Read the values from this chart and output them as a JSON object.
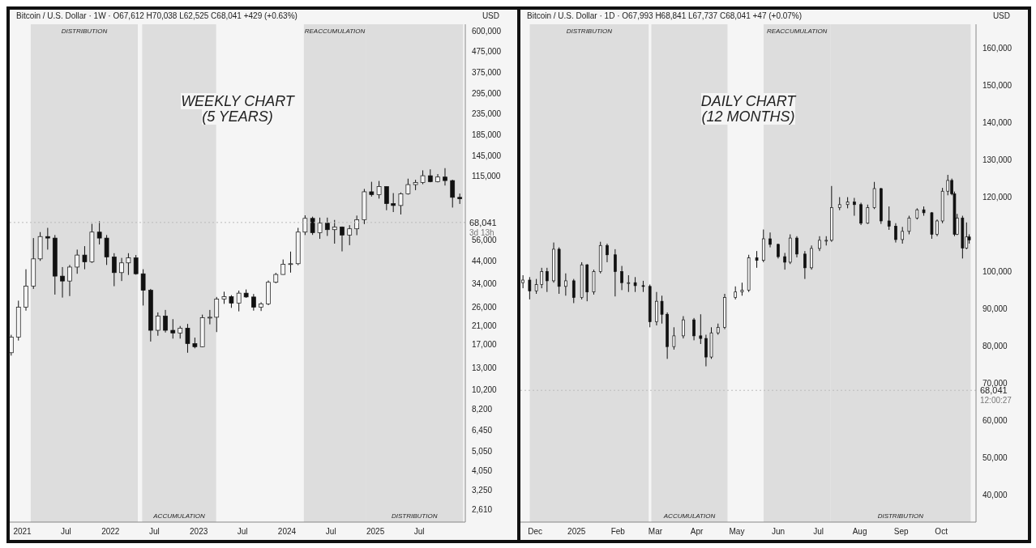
{
  "chart_data": [
    {
      "type": "candlestick",
      "title": "Bitcoin / U.S. Dollar · 1W · O67,612  H70,038  L62,525  C68,041  +429 (+0.63%)",
      "subtitle": "WEEKLY CHART\n(5 YEARS)",
      "ylabel": "USD",
      "log": true,
      "color": "#111111",
      "x": [
        "2020-11-15",
        "2020-12-15",
        "2021-01-15",
        "2021-02-15",
        "2021-03-15",
        "2021-04-15",
        "2021-05-15",
        "2021-06-15",
        "2021-07-15",
        "2021-08-15",
        "2021-09-15",
        "2021-10-15",
        "2021-11-15",
        "2021-12-15",
        "2022-01-15",
        "2022-02-15",
        "2022-03-15",
        "2022-04-15",
        "2022-05-15",
        "2022-06-15",
        "2022-07-15",
        "2022-08-15",
        "2022-09-15",
        "2022-10-15",
        "2022-11-15",
        "2022-12-15",
        "2023-01-15",
        "2023-02-15",
        "2023-03-15",
        "2023-04-15",
        "2023-05-15",
        "2023-06-15",
        "2023-07-15",
        "2023-08-15",
        "2023-09-15",
        "2023-10-15",
        "2023-11-15",
        "2023-12-15",
        "2024-01-15",
        "2024-02-15",
        "2024-03-15",
        "2024-04-15",
        "2024-05-15",
        "2024-06-15",
        "2024-07-15",
        "2024-08-15",
        "2024-09-15",
        "2024-10-15",
        "2024-11-15",
        "2024-12-15",
        "2025-01-15",
        "2025-02-15",
        "2025-03-15",
        "2025-04-15",
        "2025-05-15",
        "2025-06-15",
        "2025-07-15",
        "2025-08-15",
        "2025-09-15",
        "2025-10-15",
        "2025-11-15",
        "2025-12-15"
      ],
      "ohlc": [
        [
          15500,
          19000,
          15000,
          18500
        ],
        [
          18500,
          28000,
          17800,
          26000
        ],
        [
          26000,
          40000,
          25000,
          33000
        ],
        [
          33000,
          57000,
          32000,
          45000
        ],
        [
          45000,
          61000,
          44000,
          58000
        ],
        [
          58000,
          64000,
          50000,
          57000
        ],
        [
          57000,
          59000,
          30000,
          37000
        ],
        [
          37000,
          41000,
          29000,
          35000
        ],
        [
          35000,
          42000,
          29500,
          41000
        ],
        [
          41000,
          50000,
          38000,
          47000
        ],
        [
          47000,
          52000,
          40000,
          43500
        ],
        [
          43500,
          67000,
          43000,
          61000
        ],
        [
          61000,
          69000,
          53000,
          57000
        ],
        [
          57000,
          59000,
          42000,
          46000
        ],
        [
          46000,
          48000,
          33000,
          38500
        ],
        [
          38500,
          45500,
          35000,
          43000
        ],
        [
          43000,
          48000,
          37500,
          45500
        ],
        [
          45500,
          47000,
          37600,
          38000
        ],
        [
          38000,
          40000,
          26500,
          31500
        ],
        [
          31500,
          32000,
          17600,
          20000
        ],
        [
          20000,
          24500,
          18800,
          23500
        ],
        [
          23500,
          25200,
          19500,
          20000
        ],
        [
          20000,
          22700,
          18200,
          19400
        ],
        [
          19400,
          21000,
          18200,
          20500
        ],
        [
          20500,
          21500,
          15500,
          17200
        ],
        [
          17200,
          18400,
          16300,
          16600
        ],
        [
          16600,
          23900,
          16500,
          23100
        ],
        [
          23100,
          25200,
          21400,
          23200
        ],
        [
          23200,
          29200,
          19600,
          28500
        ],
        [
          28500,
          31000,
          27000,
          29300
        ],
        [
          29300,
          29800,
          25800,
          27200
        ],
        [
          27200,
          31400,
          24800,
          30500
        ],
        [
          30500,
          31800,
          28900,
          29200
        ],
        [
          29200,
          30200,
          25000,
          26000
        ],
        [
          26000,
          27500,
          24900,
          27000
        ],
        [
          27000,
          35200,
          26600,
          34500
        ],
        [
          34500,
          38400,
          34100,
          37700
        ],
        [
          37700,
          44700,
          37600,
          42300
        ],
        [
          42300,
          48900,
          38500,
          42600
        ],
        [
          42600,
          64000,
          41900,
          61000
        ],
        [
          61000,
          73800,
          59000,
          71300
        ],
        [
          71300,
          72700,
          59100,
          60600
        ],
        [
          60600,
          71900,
          56500,
          67500
        ],
        [
          67500,
          71900,
          58400,
          62700
        ],
        [
          62700,
          70000,
          53500,
          64600
        ],
        [
          64600,
          65000,
          49000,
          59000
        ],
        [
          59000,
          66000,
          52600,
          63300
        ],
        [
          63300,
          73600,
          58900,
          70200
        ],
        [
          70200,
          99600,
          66800,
          96400
        ],
        [
          96400,
          108000,
          91300,
          93400
        ],
        [
          93400,
          109000,
          89200,
          102400
        ],
        [
          102400,
          102500,
          78200,
          84300
        ],
        [
          84300,
          95000,
          76600,
          82500
        ],
        [
          82500,
          95700,
          74500,
          94200
        ],
        [
          94200,
          111900,
          93400,
          104600
        ],
        [
          104600,
          110500,
          98200,
          107100
        ],
        [
          107100,
          123000,
          105100,
          115700
        ],
        [
          115700,
          124400,
          107400,
          108200
        ],
        [
          108200,
          117900,
          107300,
          114000
        ],
        [
          114000,
          126100,
          103500,
          109500
        ],
        [
          109500,
          110600,
          80600,
          90500
        ],
        [
          90500,
          94500,
          84000,
          89000
        ]
      ],
      "xlim": [
        "2020-11-10",
        "2026-01-08"
      ],
      "xticks": [
        {
          "value": "2021-01-01",
          "label": "2021"
        },
        {
          "value": "2021-07-01",
          "label": "Jul"
        },
        {
          "value": "2022-01-01",
          "label": "2022"
        },
        {
          "value": "2022-07-01",
          "label": "Jul"
        },
        {
          "value": "2023-01-01",
          "label": "2023"
        },
        {
          "value": "2023-07-01",
          "label": "Jul"
        },
        {
          "value": "2024-01-01",
          "label": "2024"
        },
        {
          "value": "2024-07-01",
          "label": "Jul"
        },
        {
          "value": "2025-01-01",
          "label": "2025"
        },
        {
          "value": "2025-07-01",
          "label": "Jul"
        }
      ],
      "ylim": [
        2265,
        646000
      ],
      "yticks": [
        {
          "value": 600000,
          "label": "600,000"
        },
        {
          "value": 475000,
          "label": "475,000"
        },
        {
          "value": 375000,
          "label": "375,000"
        },
        {
          "value": 295000,
          "label": "295,000"
        },
        {
          "value": 235000,
          "label": "235,000"
        },
        {
          "value": 185000,
          "label": "185,000"
        },
        {
          "value": 145000,
          "label": "145,000"
        },
        {
          "value": 115000,
          "label": "115,000"
        },
        {
          "value": 56000,
          "label": "56,000"
        },
        {
          "value": 44000,
          "label": "44,000"
        },
        {
          "value": 34000,
          "label": "34,000"
        },
        {
          "value": 26000,
          "label": "26,000"
        },
        {
          "value": 21000,
          "label": "21,000"
        },
        {
          "value": 17000,
          "label": "17,000"
        },
        {
          "value": 13000,
          "label": "13,000"
        },
        {
          "value": 10200,
          "label": "10,200"
        },
        {
          "value": 8200,
          "label": "8,200"
        },
        {
          "value": 6450,
          "label": "6,450"
        },
        {
          "value": 5050,
          "label": "5,050"
        },
        {
          "value": 4050,
          "label": "4,050"
        },
        {
          "value": 3250,
          "label": "3,250"
        },
        {
          "value": 2610,
          "label": "2,610"
        }
      ],
      "bands": [
        {
          "axis": "x",
          "from": "2021-02-05",
          "to": "2022-04-24",
          "label": "DISTRIBUTION",
          "color": "#dddddd"
        },
        {
          "axis": "x",
          "from": "2022-05-12",
          "to": "2023-03-14",
          "label": "ACCUMULATION",
          "color": "#dddddd"
        },
        {
          "axis": "x",
          "from": "2024-03-11",
          "to": "2024-11-22",
          "label": "REACCUMULATION",
          "color": "#dddddd"
        },
        {
          "axis": "x",
          "from": "2024-11-22",
          "to": "2025-12-30",
          "label": "DISTRIBUTION",
          "color": "#dddddd"
        }
      ],
      "ref_lines": [
        {
          "axis": "y",
          "value": 68041,
          "label": "68,041",
          "line_style": "dotted",
          "color": "#bbbbbb"
        }
      ],
      "annotations": [
        "3d 13h"
      ]
    },
    {
      "type": "candlestick",
      "title": "Bitcoin / U.S. Dollar · 1D · O67,993  H68,841  L67,737  C68,041  +47 (+0.07%)",
      "subtitle": "DAILY CHART\n(12 MONTHS)",
      "ylabel": "USD",
      "color": "#111111",
      "x": [
        "2024-11-22",
        "2024-11-27",
        "2024-12-02",
        "2024-12-06",
        "2024-12-10",
        "2024-12-15",
        "2024-12-19",
        "2024-12-24",
        "2024-12-30",
        "2025-01-05",
        "2025-01-09",
        "2025-01-14",
        "2025-01-19",
        "2025-01-24",
        "2025-01-30",
        "2025-02-04",
        "2025-02-09",
        "2025-02-14",
        "2025-02-20",
        "2025-02-25",
        "2025-03-02",
        "2025-03-06",
        "2025-03-10",
        "2025-03-15",
        "2025-03-22",
        "2025-03-30",
        "2025-04-04",
        "2025-04-08",
        "2025-04-12",
        "2025-04-17",
        "2025-04-22",
        "2025-04-30",
        "2025-05-05",
        "2025-05-10",
        "2025-05-16",
        "2025-05-21",
        "2025-05-26",
        "2025-06-01",
        "2025-06-06",
        "2025-06-10",
        "2025-06-15",
        "2025-06-21",
        "2025-06-26",
        "2025-07-02",
        "2025-07-07",
        "2025-07-11",
        "2025-07-17",
        "2025-07-23",
        "2025-07-28",
        "2025-08-02",
        "2025-08-07",
        "2025-08-12",
        "2025-08-17",
        "2025-08-23",
        "2025-08-28",
        "2025-09-02",
        "2025-09-07",
        "2025-09-13",
        "2025-09-18",
        "2025-09-24",
        "2025-09-28",
        "2025-10-02",
        "2025-10-06",
        "2025-10-09",
        "2025-10-11",
        "2025-10-13",
        "2025-10-17",
        "2025-10-20",
        "2025-10-22"
      ],
      "ohlc": [
        [
          97000,
          99000,
          95500,
          97700
        ],
        [
          97700,
          98500,
          92500,
          94800
        ],
        [
          94800,
          98000,
          94000,
          96500
        ],
        [
          96500,
          101000,
          95500,
          100000
        ],
        [
          100000,
          101000,
          94500,
          97500
        ],
        [
          97500,
          107800,
          97000,
          106000
        ],
        [
          106000,
          106500,
          94000,
          96000
        ],
        [
          96000,
          99500,
          93500,
          97500
        ],
        [
          97500,
          98000,
          91500,
          93000
        ],
        [
          93000,
          102500,
          92500,
          101800
        ],
        [
          101800,
          102000,
          92000,
          94500
        ],
        [
          94500,
          100500,
          93800,
          100000
        ],
        [
          100000,
          108000,
          99500,
          107000
        ],
        [
          107000,
          107500,
          102500,
          104500
        ],
        [
          104500,
          106000,
          93300,
          100000
        ],
        [
          100000,
          101500,
          95000,
          97000
        ],
        [
          97000,
          99000,
          94500,
          97000
        ],
        [
          97000,
          98500,
          94500,
          96200
        ],
        [
          96200,
          97500,
          94500,
          96000
        ],
        [
          96000,
          96500,
          85000,
          86500
        ],
        [
          86500,
          94500,
          85500,
          92000
        ],
        [
          92000,
          93500,
          86000,
          88500
        ],
        [
          88500,
          89000,
          76500,
          79800
        ],
        [
          79800,
          85000,
          79000,
          82700
        ],
        [
          82700,
          88000,
          82000,
          87000
        ],
        [
          87000,
          87500,
          81500,
          82700
        ],
        [
          82700,
          88500,
          80500,
          82000
        ],
        [
          82000,
          83000,
          74500,
          77000
        ],
        [
          77000,
          85000,
          76500,
          83500
        ],
        [
          83500,
          86000,
          83000,
          85000
        ],
        [
          85000,
          94000,
          84500,
          93000
        ],
        [
          93000,
          96000,
          92500,
          94500
        ],
        [
          94500,
          97000,
          93500,
          95000
        ],
        [
          95000,
          104500,
          94500,
          103700
        ],
        [
          103700,
          105500,
          101000,
          103000
        ],
        [
          103000,
          111300,
          102500,
          108800
        ],
        [
          108800,
          110500,
          106500,
          107300
        ],
        [
          107300,
          107500,
          103500,
          104000
        ],
        [
          104000,
          105000,
          100500,
          102500
        ],
        [
          102500,
          110000,
          102000,
          109000
        ],
        [
          109000,
          109500,
          103800,
          104700
        ],
        [
          104700,
          105500,
          98000,
          101000
        ],
        [
          101000,
          107000,
          100500,
          106200
        ],
        [
          106200,
          109500,
          105500,
          108400
        ],
        [
          108400,
          109500,
          107000,
          108400
        ],
        [
          108400,
          123000,
          108000,
          117200
        ],
        [
          117200,
          120000,
          116500,
          118000
        ],
        [
          118000,
          120000,
          117000,
          118700
        ],
        [
          118700,
          119800,
          115000,
          118000
        ],
        [
          118000,
          118500,
          112500,
          113000
        ],
        [
          113000,
          118000,
          112800,
          117200
        ],
        [
          117200,
          124100,
          116800,
          122300
        ],
        [
          122300,
          122500,
          112800,
          113600
        ],
        [
          113600,
          117500,
          111200,
          112200
        ],
        [
          112200,
          113000,
          107800,
          108600
        ],
        [
          108600,
          112000,
          107500,
          110800
        ],
        [
          110800,
          115000,
          110000,
          114400
        ],
        [
          114400,
          117000,
          114000,
          116600
        ],
        [
          116600,
          117500,
          115000,
          115800
        ],
        [
          115800,
          116000,
          108800,
          110000
        ],
        [
          110000,
          114000,
          109500,
          113600
        ],
        [
          113600,
          122500,
          113000,
          121600
        ],
        [
          121600,
          126000,
          120500,
          124500
        ],
        [
          124500,
          125000,
          120500,
          120900
        ],
        [
          120900,
          121500,
          109500,
          110000
        ],
        [
          110000,
          115500,
          109800,
          114400
        ],
        [
          114400,
          115000,
          103500,
          106300
        ],
        [
          106300,
          113200,
          106000,
          109300
        ],
        [
          109300,
          110000,
          107500,
          108500
        ]
      ],
      "xlim": [
        "2024-11-20",
        "2025-10-27"
      ],
      "xticks": [
        {
          "value": "2024-12-01",
          "label": "Dec"
        },
        {
          "value": "2025-01-01",
          "label": "2025"
        },
        {
          "value": "2025-02-01",
          "label": "Feb"
        },
        {
          "value": "2025-03-01",
          "label": "Mar"
        },
        {
          "value": "2025-04-01",
          "label": "Apr"
        },
        {
          "value": "2025-05-01",
          "label": "May"
        },
        {
          "value": "2025-06-01",
          "label": "Jun"
        },
        {
          "value": "2025-07-01",
          "label": "Jul"
        },
        {
          "value": "2025-08-01",
          "label": "Aug"
        },
        {
          "value": "2025-09-01",
          "label": "Sep"
        },
        {
          "value": "2025-10-01",
          "label": "Oct"
        }
      ],
      "ylim": [
        32600,
        166500
      ],
      "yticks": [
        {
          "value": 160000,
          "label": "160,000"
        },
        {
          "value": 150000,
          "label": "150,000"
        },
        {
          "value": 140000,
          "label": "140,000"
        },
        {
          "value": 130000,
          "label": "130,000"
        },
        {
          "value": 120000,
          "label": "120,000"
        },
        {
          "value": 100000,
          "label": "100,000"
        },
        {
          "value": 90000,
          "label": "90,000"
        },
        {
          "value": 80000,
          "label": "80,000"
        },
        {
          "value": 70000,
          "label": "70,000"
        },
        {
          "value": 60000,
          "label": "60,000"
        },
        {
          "value": 50000,
          "label": "50,000"
        },
        {
          "value": 40000,
          "label": "40,000"
        }
      ],
      "bands": [
        {
          "axis": "x",
          "from": "2024-11-27",
          "to": "2025-02-24",
          "label": "DISTRIBUTION",
          "color": "#dddddd"
        },
        {
          "axis": "x",
          "from": "2025-02-26",
          "to": "2025-04-24",
          "label": "ACCUMULATION",
          "color": "#dddddd"
        },
        {
          "axis": "x",
          "from": "2025-05-21",
          "to": "2025-07-10",
          "label": "REACCUMULATION",
          "color": "#dddddd"
        },
        {
          "axis": "x",
          "from": "2025-07-10",
          "to": "2025-10-23",
          "label": "DISTRIBUTION",
          "color": "#dddddd"
        }
      ],
      "ref_lines": [
        {
          "axis": "y",
          "value": 68041,
          "label": "68,041",
          "line_style": "dotted",
          "color": "#bbbbbb"
        }
      ],
      "annotations": [
        "12:00:27"
      ]
    }
  ]
}
